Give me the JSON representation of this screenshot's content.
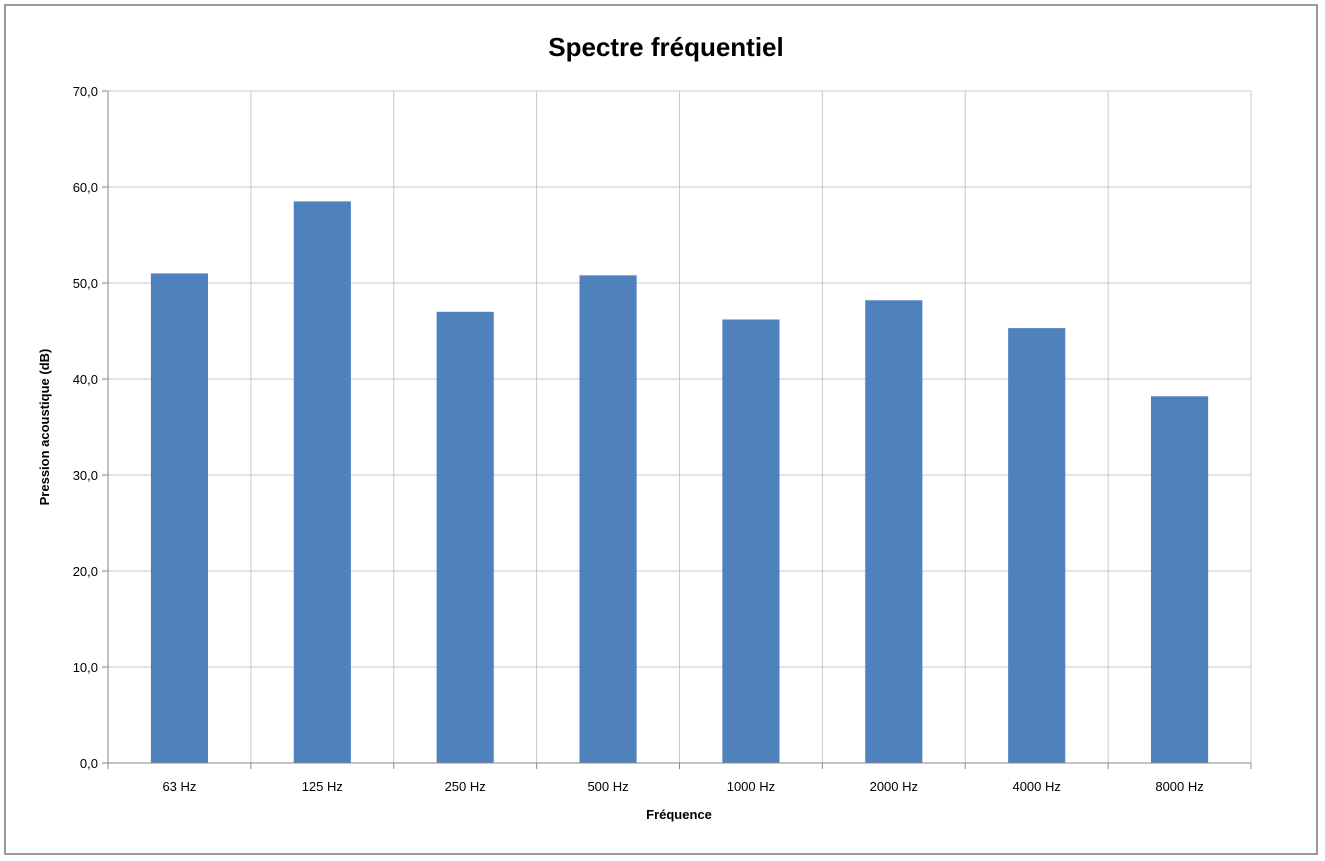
{
  "chart_data": {
    "type": "bar",
    "title": "Spectre fréquentiel",
    "xlabel": "Fréquence",
    "ylabel": "Pression acoustique (dB)",
    "categories": [
      "63 Hz",
      "125 Hz",
      "250 Hz",
      "500 Hz",
      "1000 Hz",
      "2000 Hz",
      "4000 Hz",
      "8000 Hz"
    ],
    "values": [
      51.0,
      58.5,
      47.0,
      50.8,
      46.2,
      48.2,
      45.3,
      38.2
    ],
    "ylim": [
      0,
      70
    ],
    "yticks": [
      "0,0",
      "10,0",
      "20,0",
      "30,0",
      "40,0",
      "50,0",
      "60,0",
      "70,0"
    ],
    "grid": true,
    "legend": "none",
    "bar_color": "#4f81bd",
    "grid_color": "#c8c8c8"
  }
}
